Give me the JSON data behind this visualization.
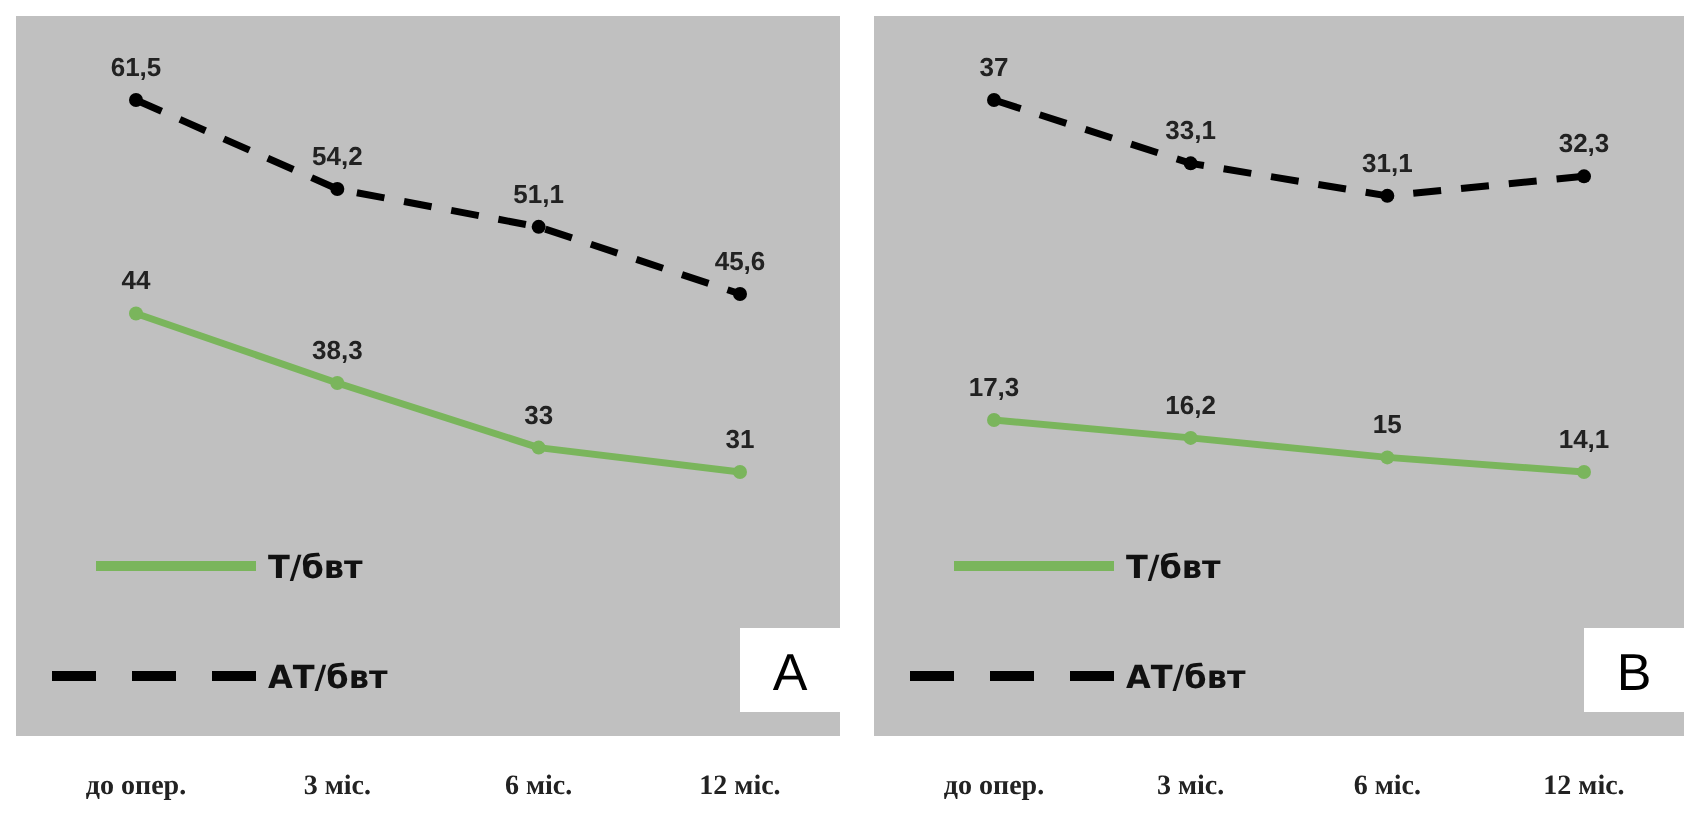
{
  "chart_data": [
    {
      "type": "line",
      "title": "A",
      "categories": [
        "до опер.",
        "3 міс.",
        "6 міс.",
        "12 міс."
      ],
      "series": [
        {
          "name": "Т/бвт",
          "color": "#7ab55c",
          "values": [
            44,
            38.3,
            33,
            31
          ],
          "value_labels": [
            "44",
            "38,3",
            "33",
            "31"
          ],
          "line_style": "solid"
        },
        {
          "name": "АТ/бвт",
          "color": "#000000",
          "values": [
            61.5,
            54.2,
            51.1,
            45.6
          ],
          "value_labels": [
            "61,5",
            "54,2",
            "51,1",
            "45,6"
          ],
          "line_style": "dashed"
        }
      ],
      "marker": "circle",
      "legend": "bottom left",
      "tick_labels": "x"
    },
    {
      "type": "line",
      "title": "B",
      "categories": [
        "до опер.",
        "3 міс.",
        "6 міс.",
        "12 міс."
      ],
      "series": [
        {
          "name": "Т/бвт",
          "color": "#7ab55c",
          "values": [
            17.3,
            16.2,
            15,
            14.1
          ],
          "value_labels": [
            "17,3",
            "16,2",
            "15",
            "14,1"
          ],
          "line_style": "solid"
        },
        {
          "name": "АТ/бвт",
          "color": "#000000",
          "values": [
            37,
            33.1,
            31.1,
            32.3
          ],
          "value_labels": [
            "37",
            "33,1",
            "31,1",
            "32,3"
          ],
          "line_style": "dashed"
        }
      ],
      "marker": "circle",
      "legend": "bottom left",
      "tick_labels": "x"
    }
  ]
}
